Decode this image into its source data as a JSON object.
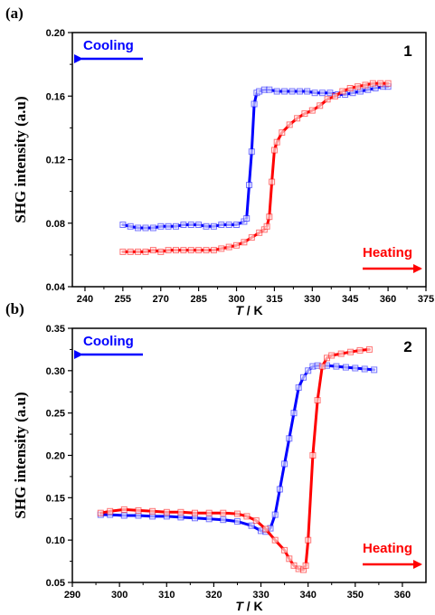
{
  "chart_data": [
    {
      "type": "line",
      "panel_label": "(a)",
      "compound_label": "1",
      "xlabel_italic": "T",
      "xlabel_unit": " / K",
      "ylabel": "SHG intensity (a.u)",
      "xlim": [
        235,
        375
      ],
      "ylim": [
        0.04,
        0.2
      ],
      "xticks": [
        "240",
        "255",
        "270",
        "285",
        "300",
        "315",
        "330",
        "345",
        "360",
        "375"
      ],
      "yticks": [
        "0.04",
        "0.08",
        "0.12",
        "0.16",
        "0.20"
      ],
      "cooling_label": "Cooling",
      "heating_label": "Heating",
      "series": [
        {
          "color": "#0000ff",
          "x": [
            255,
            258,
            261,
            264,
            267,
            270,
            273,
            276,
            279,
            282,
            285,
            288,
            291,
            294,
            297,
            300,
            303,
            304,
            305,
            306,
            307,
            308,
            309,
            311,
            313,
            316,
            319,
            322,
            325,
            328,
            331,
            334,
            337,
            340,
            343,
            346,
            349,
            352,
            355,
            358,
            360
          ],
          "y": [
            0.079,
            0.078,
            0.077,
            0.077,
            0.077,
            0.078,
            0.078,
            0.078,
            0.079,
            0.079,
            0.079,
            0.078,
            0.078,
            0.079,
            0.079,
            0.079,
            0.081,
            0.083,
            0.104,
            0.125,
            0.155,
            0.162,
            0.163,
            0.164,
            0.164,
            0.163,
            0.163,
            0.163,
            0.163,
            0.163,
            0.162,
            0.162,
            0.162,
            0.161,
            0.161,
            0.162,
            0.163,
            0.164,
            0.165,
            0.166,
            0.166
          ]
        },
        {
          "color": "#ff0000",
          "x": [
            255,
            258,
            261,
            264,
            267,
            270,
            273,
            276,
            279,
            282,
            285,
            288,
            291,
            294,
            297,
            300,
            303,
            306,
            309,
            311,
            312,
            313,
            314,
            315,
            316,
            318,
            321,
            324,
            327,
            330,
            333,
            336,
            339,
            342,
            345,
            348,
            351,
            354,
            357,
            360
          ],
          "y": [
            0.062,
            0.062,
            0.062,
            0.062,
            0.063,
            0.062,
            0.063,
            0.063,
            0.063,
            0.063,
            0.063,
            0.063,
            0.063,
            0.064,
            0.065,
            0.066,
            0.068,
            0.071,
            0.074,
            0.076,
            0.078,
            0.084,
            0.106,
            0.126,
            0.131,
            0.137,
            0.142,
            0.146,
            0.149,
            0.151,
            0.154,
            0.158,
            0.16,
            0.163,
            0.165,
            0.166,
            0.167,
            0.168,
            0.168,
            0.168
          ]
        }
      ]
    },
    {
      "type": "line",
      "panel_label": "(b)",
      "compound_label": "2",
      "xlabel_italic": "T",
      "xlabel_unit": " / K",
      "ylabel": "SHG intensity (a.u)",
      "xlim": [
        290,
        365
      ],
      "ylim": [
        0.05,
        0.35
      ],
      "xticks": [
        "290",
        "300",
        "310",
        "320",
        "330",
        "340",
        "350",
        "360"
      ],
      "yticks": [
        "0.05",
        "0.10",
        "0.15",
        "0.20",
        "0.25",
        "0.30",
        "0.35"
      ],
      "cooling_label": "Cooling",
      "heating_label": "Heating",
      "series": [
        {
          "color": "#0000ff",
          "x": [
            296,
            298,
            301,
            304,
            307,
            310,
            313,
            316,
            319,
            322,
            325,
            328,
            330,
            331,
            332,
            333,
            334,
            335,
            336,
            337,
            338,
            339,
            340,
            341,
            342,
            344,
            346,
            348,
            350,
            352,
            354
          ],
          "y": [
            0.13,
            0.13,
            0.129,
            0.129,
            0.128,
            0.128,
            0.127,
            0.126,
            0.125,
            0.124,
            0.122,
            0.117,
            0.111,
            0.11,
            0.114,
            0.13,
            0.16,
            0.19,
            0.22,
            0.25,
            0.28,
            0.292,
            0.3,
            0.305,
            0.306,
            0.306,
            0.305,
            0.304,
            0.303,
            0.302,
            0.301
          ]
        },
        {
          "color": "#ff0000",
          "x": [
            296,
            298,
            301,
            304,
            307,
            310,
            313,
            316,
            319,
            322,
            325,
            327,
            329,
            331,
            333,
            335,
            336,
            337,
            338,
            339,
            339.5,
            340,
            341,
            342,
            343,
            344,
            345,
            347,
            349,
            351,
            353
          ],
          "y": [
            0.132,
            0.134,
            0.136,
            0.135,
            0.134,
            0.133,
            0.133,
            0.132,
            0.132,
            0.132,
            0.131,
            0.128,
            0.123,
            0.113,
            0.1,
            0.088,
            0.078,
            0.07,
            0.066,
            0.065,
            0.07,
            0.1,
            0.2,
            0.265,
            0.305,
            0.315,
            0.318,
            0.32,
            0.322,
            0.324,
            0.325
          ]
        }
      ]
    }
  ]
}
